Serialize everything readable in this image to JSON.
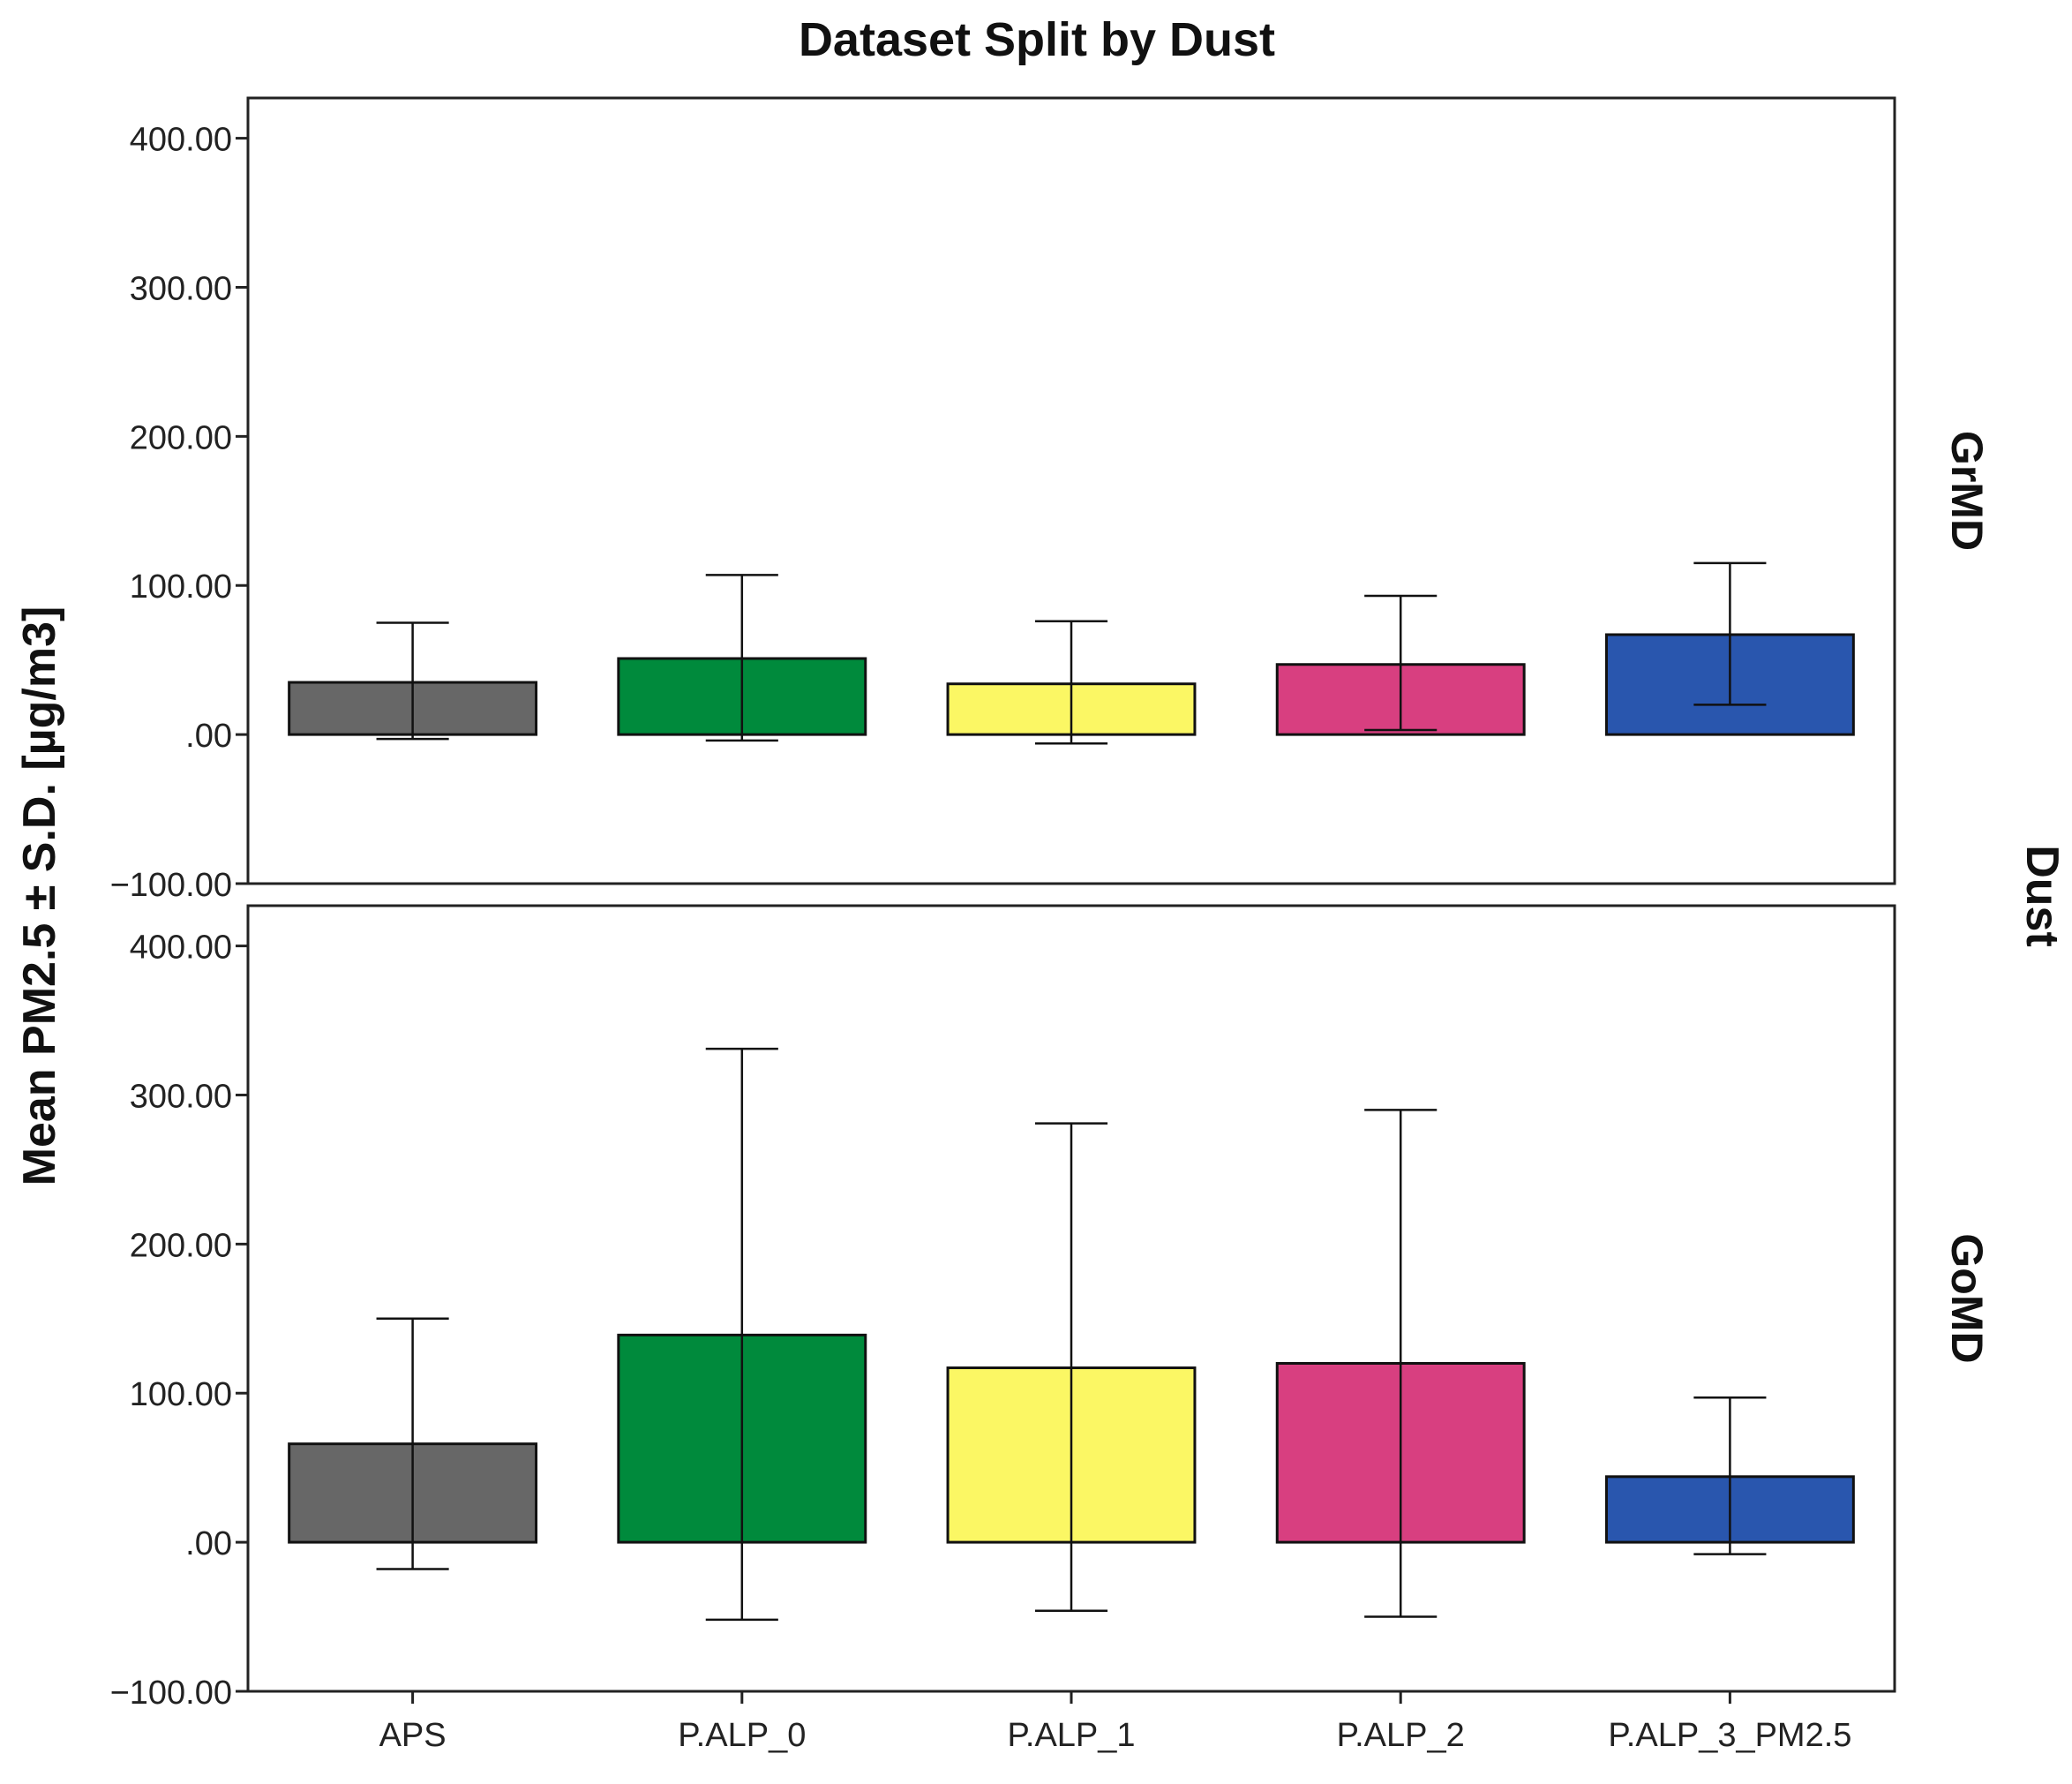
{
  "chart_data": {
    "type": "bar",
    "title": "Dataset Split by Dust",
    "ylabel": "Mean PM2.5 ± S.D. [µg/m3]",
    "panel_group_label": "Dust",
    "categories": [
      "APS",
      "P.ALP_0",
      "P.ALP_1",
      "P.ALP_2",
      "P.ALP_3_PM2.5"
    ],
    "colors": [
      "#676767",
      "#008a3c",
      "#fbf764",
      "#d83f80",
      "#2956ae"
    ],
    "ylim": [
      -100,
      400
    ],
    "yticks": [
      400,
      300,
      200,
      100,
      0,
      -100
    ],
    "ytick_labels": [
      "400.00",
      "300.00",
      "200.00",
      "100.00",
      ".00",
      "−100.00"
    ],
    "error_bars": "mean ± S.D.",
    "grid": false,
    "panels": [
      {
        "label": "GrMD",
        "means": [
          35,
          51,
          34,
          47,
          67
        ],
        "error_low": [
          -3,
          -4,
          -6,
          3,
          20
        ],
        "error_high": [
          75,
          107,
          76,
          93,
          115
        ]
      },
      {
        "label": "GoMD",
        "means": [
          66,
          139,
          117,
          120,
          44
        ],
        "error_low": [
          -18,
          -52,
          -46,
          -50,
          -8
        ],
        "error_high": [
          150,
          331,
          281,
          290,
          97
        ]
      }
    ]
  }
}
